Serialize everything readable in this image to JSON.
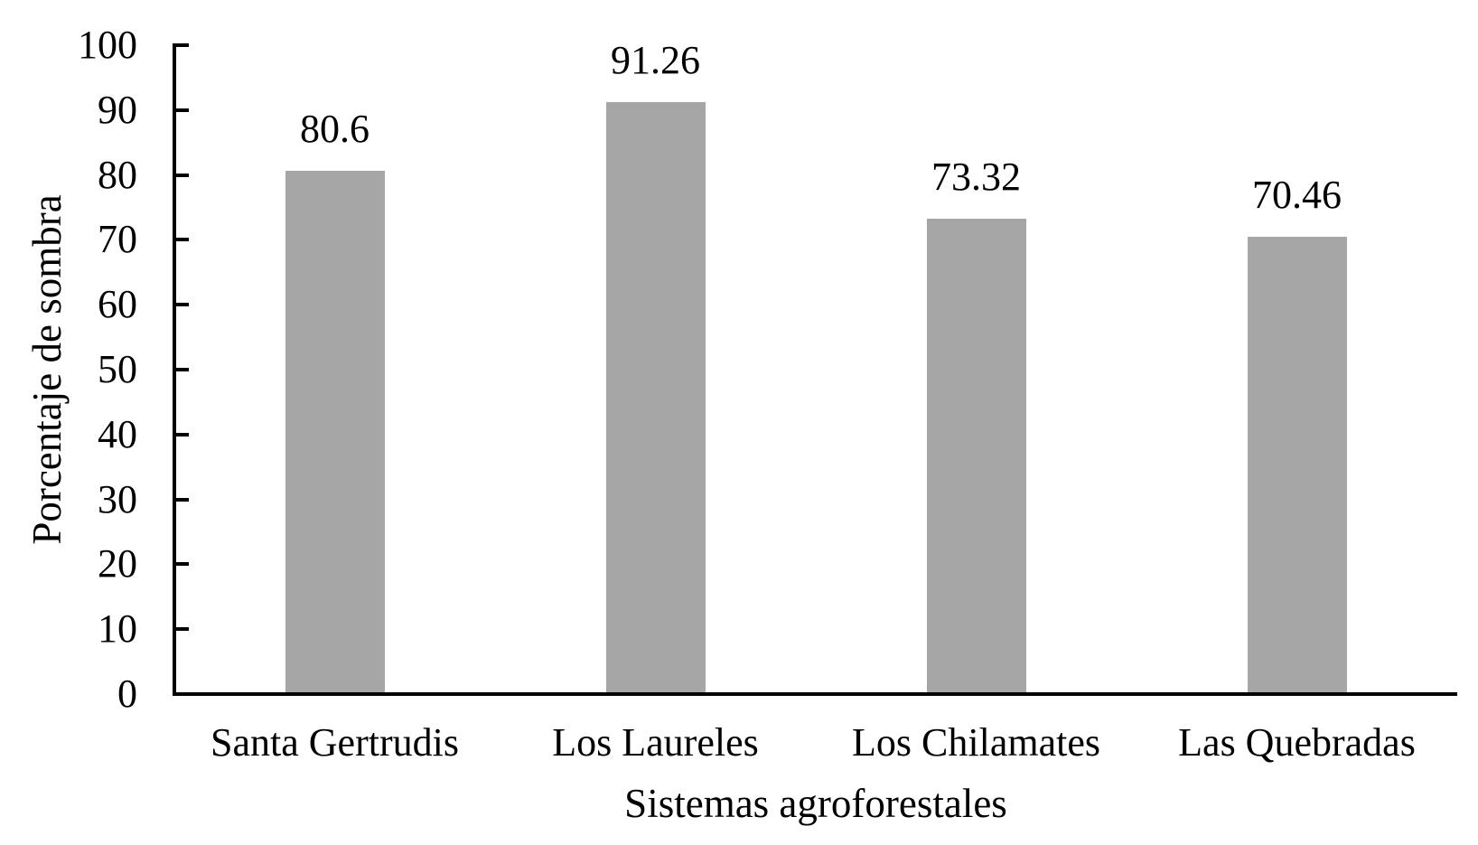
{
  "chart_data": {
    "type": "bar",
    "title": "",
    "categories": [
      "Santa Gertrudis",
      "Los Laureles",
      "Los Chilamates",
      "Las Quebradas"
    ],
    "values": [
      80.6,
      91.26,
      73.32,
      70.46
    ],
    "value_labels": [
      "80.6",
      "91.26",
      "73.32",
      "70.46"
    ],
    "xlabel": "Sistemas agroforestales",
    "ylabel": "Porcentaje de sombra",
    "ylim": [
      0,
      100
    ],
    "yticks": [
      0,
      10,
      20,
      30,
      40,
      50,
      60,
      70,
      80,
      90,
      100
    ],
    "grid": "off",
    "legend": "none",
    "tick_direction": "inside",
    "bar_color": "#a6a6a6",
    "axis_color": "#000000",
    "text_color": "#000000"
  }
}
